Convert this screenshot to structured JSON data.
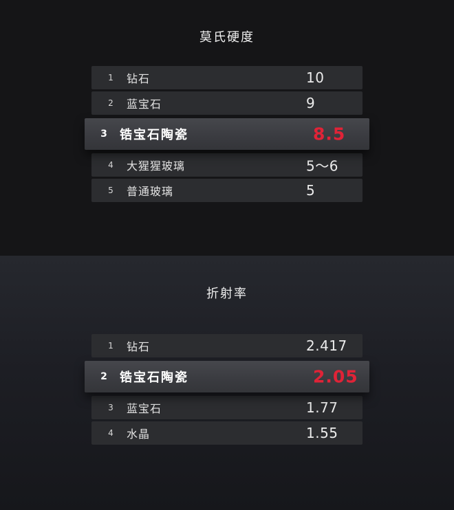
{
  "accent": {
    "highlight_value_red": "#e02337",
    "row_bg": "#2c2d30",
    "highlight_row_bg": "#3b3c41"
  },
  "chart_data": [
    {
      "type": "table",
      "title": "莫氏硬度",
      "legend_position": "none",
      "highlighted_row_index": 2,
      "rows": [
        {
          "rank": "1",
          "name": "钻石",
          "value": "10"
        },
        {
          "rank": "2",
          "name": "蓝宝石",
          "value": "9"
        },
        {
          "rank": "3",
          "name": "锆宝石陶瓷",
          "value": "8.5"
        },
        {
          "rank": "4",
          "name": "大猩猩玻璃",
          "value": "5〜6"
        },
        {
          "rank": "5",
          "name": "普通玻璃",
          "value": "5"
        }
      ]
    },
    {
      "type": "table",
      "title": "折射率",
      "legend_position": "none",
      "highlighted_row_index": 1,
      "rows": [
        {
          "rank": "1",
          "name": "钻石",
          "value": "2.417"
        },
        {
          "rank": "2",
          "name": "锆宝石陶瓷",
          "value": "2.05"
        },
        {
          "rank": "3",
          "name": "蓝宝石",
          "value": "1.77"
        },
        {
          "rank": "4",
          "name": "水晶",
          "value": "1.55"
        }
      ]
    }
  ]
}
